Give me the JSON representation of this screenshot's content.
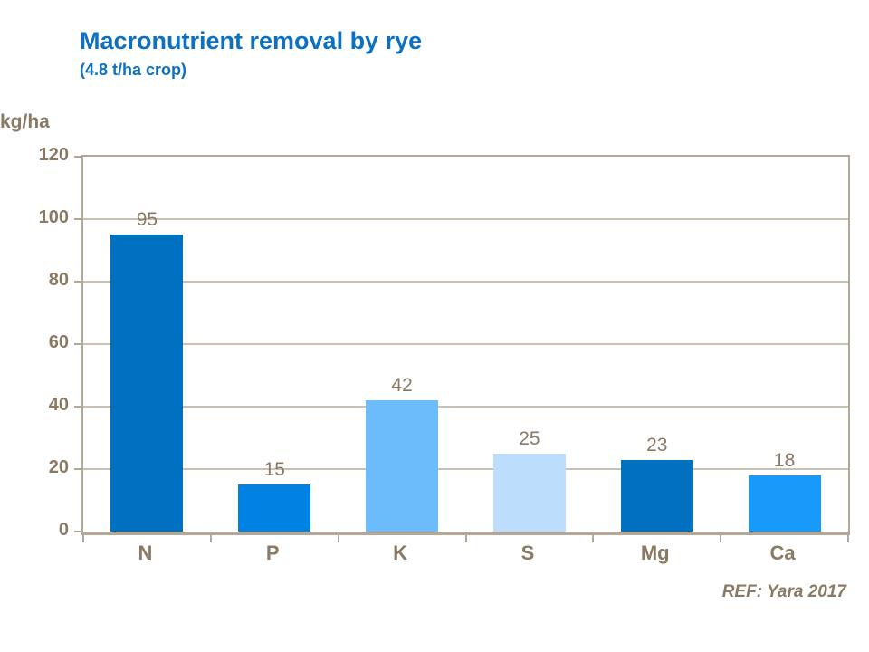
{
  "header": {
    "title": "Macronutrient removal by rye",
    "subtitle": "(4.8 t/ha crop)"
  },
  "footer": {
    "ref": "REF: Yara 2017"
  },
  "colors": {
    "title_blue": "#0d70c0",
    "axis_text": "#8a7a63",
    "axis_line": "#b3a798",
    "gridline": "#c9c0b2",
    "background": "#ffffff"
  },
  "chart_data": {
    "type": "bar",
    "title": "Macronutrient removal by rye",
    "subtitle": "(4.8 t/ha crop)",
    "categories": [
      "N",
      "P",
      "K",
      "S",
      "Mg",
      "Ca"
    ],
    "values": [
      95,
      15,
      42,
      25,
      23,
      18
    ],
    "bar_colors": [
      "#0070C0",
      "#0082E3",
      "#6CBCFB",
      "#BCDDFB",
      "#0070C0",
      "#189AFA"
    ],
    "xlabel": "",
    "ylabel": "kg/ha",
    "ylim": [
      0,
      120
    ],
    "yticks": [
      0,
      20,
      40,
      60,
      80,
      100,
      120
    ],
    "grid": "horizontal",
    "legend": "none",
    "value_labels": "above-bars",
    "reference": "REF: Yara 2017"
  }
}
